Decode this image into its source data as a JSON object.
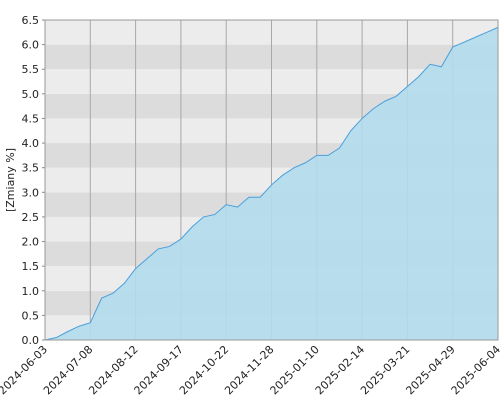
{
  "chart_data": {
    "type": "area",
    "ylabel": "[Zmiany %]",
    "x": [
      "2024-06-03",
      "2024-06-12",
      "2024-06-20",
      "2024-06-28",
      "2024-07-08",
      "2024-07-16",
      "2024-07-25",
      "2024-08-02",
      "2024-08-12",
      "2024-08-21",
      "2024-08-29",
      "2024-09-06",
      "2024-09-17",
      "2024-09-25",
      "2024-10-04",
      "2024-10-14",
      "2024-10-22",
      "2024-10-31",
      "2024-11-11",
      "2024-11-19",
      "2024-11-28",
      "2024-12-09",
      "2024-12-17",
      "2024-12-30",
      "2025-01-10",
      "2025-01-20",
      "2025-01-28",
      "2025-02-05",
      "2025-02-14",
      "2025-02-24",
      "2025-03-04",
      "2025-03-12",
      "2025-03-21",
      "2025-03-31",
      "2025-04-09",
      "2025-04-18",
      "2025-04-29",
      "2025-05-09",
      "2025-05-19",
      "2025-05-27",
      "2025-06-04"
    ],
    "values": [
      0.0,
      0.05,
      0.17,
      0.28,
      0.35,
      0.85,
      0.95,
      1.15,
      1.45,
      1.65,
      1.85,
      1.9,
      2.05,
      2.3,
      2.5,
      2.55,
      2.75,
      2.7,
      2.9,
      2.9,
      3.15,
      3.35,
      3.5,
      3.6,
      3.75,
      3.75,
      3.9,
      4.25,
      4.5,
      4.7,
      4.85,
      4.95,
      5.15,
      5.35,
      5.6,
      5.55,
      5.95,
      6.05,
      6.15,
      6.25,
      6.35
    ],
    "xticks": [
      "2024-06-03",
      "2024-07-08",
      "2024-08-12",
      "2024-09-17",
      "2024-10-22",
      "2024-11-28",
      "2025-01-10",
      "2025-02-14",
      "2025-03-21",
      "2025-04-29",
      "2025-06-04"
    ],
    "ylim": [
      0,
      6.5
    ],
    "yticks": [
      {
        "value": 0,
        "label": "0.0"
      },
      {
        "value": 0.5,
        "label": "0.5"
      },
      {
        "value": 1,
        "label": "1.0"
      },
      {
        "value": 1.5,
        "label": "1.5"
      },
      {
        "value": 2,
        "label": "2.0"
      },
      {
        "value": 2.5,
        "label": "2.5"
      },
      {
        "value": 3,
        "label": "3.0"
      },
      {
        "value": 3.5,
        "label": "3.5"
      },
      {
        "value": 4,
        "label": "4.0"
      },
      {
        "value": 4.5,
        "label": "4.5"
      },
      {
        "value": 5,
        "label": "5.0"
      },
      {
        "value": 5.5,
        "label": "5.5"
      },
      {
        "value": 6,
        "label": "6.0"
      },
      {
        "value": 6.5,
        "label": "6.5"
      }
    ],
    "color": "#b3dcec",
    "line_color": "#4a9fdc",
    "grid": true
  }
}
